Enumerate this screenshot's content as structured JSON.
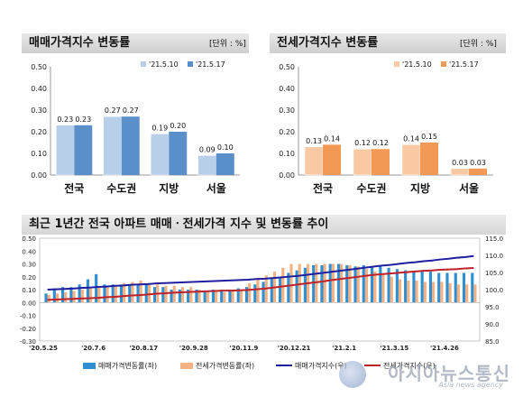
{
  "chart_data": [
    {
      "type": "bar",
      "title": "매매가격지수 변동률",
      "unit": "[단위 : %]",
      "categories": [
        "전국",
        "수도권",
        "지방",
        "서울"
      ],
      "series": [
        {
          "name": "'21.5.10",
          "values": [
            0.23,
            0.27,
            0.19,
            0.09
          ]
        },
        {
          "name": "'21.5.17",
          "values": [
            0.23,
            0.27,
            0.2,
            0.1
          ]
        }
      ],
      "ylim": [
        0,
        0.5
      ],
      "yticks": [
        "0.00",
        "0.10",
        "0.20",
        "0.30",
        "0.40",
        "0.50"
      ],
      "legend": "top-right",
      "colors": {
        "s1": "#b7cfe9",
        "s2": "#5b8fc9"
      }
    },
    {
      "type": "bar",
      "title": "전세가격지수 변동률",
      "unit": "[단위 : %]",
      "categories": [
        "전국",
        "수도권",
        "지방",
        "서울"
      ],
      "series": [
        {
          "name": "'21.5.10",
          "values": [
            0.13,
            0.12,
            0.14,
            0.03
          ]
        },
        {
          "name": "'21.5.17",
          "values": [
            0.14,
            0.12,
            0.15,
            0.03
          ]
        }
      ],
      "ylim": [
        0,
        0.5
      ],
      "yticks": [
        "0.00",
        "0.10",
        "0.20",
        "0.30",
        "0.40",
        "0.50"
      ],
      "legend": "top-right",
      "colors": {
        "s1": "#f9c9a4",
        "s2": "#f29a55"
      }
    },
    {
      "type": "bar+line",
      "title": "최근 1년간 전국 아파트 매매ㆍ전세가격 지수 및 변동률 추이",
      "x_ticks": [
        "'20.5.25",
        "'20.7.6",
        "'20.8.17",
        "'20.9.28",
        "'20.11.9",
        "'20.12.21",
        "'21.2.1",
        "'21.3.15",
        "'21.4.26"
      ],
      "y_left_ticks": [
        "-0.30",
        "-0.20",
        "-0.10",
        "0.00",
        "0.10",
        "0.20",
        "0.30",
        "0.40",
        "0.50"
      ],
      "y_left_lim": [
        -0.3,
        0.5
      ],
      "y_right_ticks": [
        "85.0",
        "90.0",
        "95.0",
        "100.0",
        "105.0",
        "110.0",
        "115.0"
      ],
      "y_right_lim": [
        85,
        115
      ],
      "series": [
        {
          "name": "매매가격변동률(좌)",
          "kind": "bar",
          "color": "#2f8fd0",
          "values": [
            0.07,
            0.11,
            0.12,
            0.12,
            0.14,
            0.18,
            0.22,
            0.14,
            0.14,
            0.14,
            0.14,
            0.14,
            0.14,
            0.12,
            0.12,
            0.1,
            0.1,
            0.1,
            0.1,
            0.09,
            0.1,
            0.1,
            0.1,
            0.11,
            0.12,
            0.14,
            0.16,
            0.19,
            0.2,
            0.23,
            0.25,
            0.27,
            0.29,
            0.29,
            0.3,
            0.3,
            0.29,
            0.28,
            0.29,
            0.28,
            0.28,
            0.27,
            0.26,
            0.25,
            0.24,
            0.24,
            0.24,
            0.23,
            0.23,
            0.23,
            0.23,
            0.23
          ]
        },
        {
          "name": "전세가격변동률(좌)",
          "kind": "bar",
          "color": "#f4b183",
          "values": [
            0.06,
            0.07,
            0.08,
            0.09,
            0.1,
            0.11,
            0.12,
            0.12,
            0.13,
            0.15,
            0.16,
            0.17,
            0.15,
            0.14,
            0.13,
            0.13,
            0.12,
            0.12,
            0.1,
            0.09,
            0.09,
            0.08,
            0.09,
            0.1,
            0.15,
            0.19,
            0.21,
            0.24,
            0.27,
            0.3,
            0.3,
            0.3,
            0.3,
            0.3,
            0.3,
            0.3,
            0.29,
            0.28,
            0.26,
            0.24,
            0.22,
            0.2,
            0.18,
            0.17,
            0.17,
            0.16,
            0.16,
            0.16,
            0.15,
            0.14,
            0.14,
            0.14
          ]
        },
        {
          "name": "매매가격지수(우)",
          "kind": "line",
          "color": "#1f1fa0",
          "values": [
            100.0,
            100.1,
            100.2,
            100.3,
            100.5,
            100.6,
            100.8,
            100.9,
            101.1,
            101.2,
            101.4,
            101.5,
            101.6,
            101.8,
            101.9,
            102.0,
            102.1,
            102.2,
            102.3,
            102.4,
            102.5,
            102.6,
            102.7,
            102.8,
            102.9,
            103.1,
            103.2,
            103.4,
            103.6,
            103.8,
            104.0,
            104.3,
            104.6,
            104.9,
            105.2,
            105.5,
            105.8,
            106.1,
            106.4,
            106.7,
            107.0,
            107.2,
            107.5,
            107.8,
            108.0,
            108.3,
            108.5,
            108.8,
            109.0,
            109.3,
            109.5,
            109.8
          ]
        },
        {
          "name": "전세가격지수(우)",
          "kind": "line",
          "color": "#c0202a",
          "values": [
            97.0,
            97.1,
            97.2,
            97.3,
            97.4,
            97.5,
            97.6,
            97.8,
            97.9,
            98.1,
            98.3,
            98.4,
            98.6,
            98.8,
            98.9,
            99.1,
            99.2,
            99.3,
            99.4,
            99.5,
            99.6,
            99.7,
            99.7,
            99.8,
            99.9,
            100.1,
            100.3,
            100.6,
            100.9,
            101.2,
            101.5,
            101.8,
            102.1,
            102.4,
            102.8,
            103.1,
            103.4,
            103.7,
            104.0,
            104.3,
            104.5,
            104.7,
            104.9,
            105.1,
            105.3,
            105.5,
            105.6,
            105.8,
            105.9,
            106.0,
            106.2,
            106.3
          ]
        }
      ],
      "legend": "bottom"
    }
  ],
  "watermark": {
    "main": "아시아뉴스통신",
    "sub": "Asia news agency"
  }
}
